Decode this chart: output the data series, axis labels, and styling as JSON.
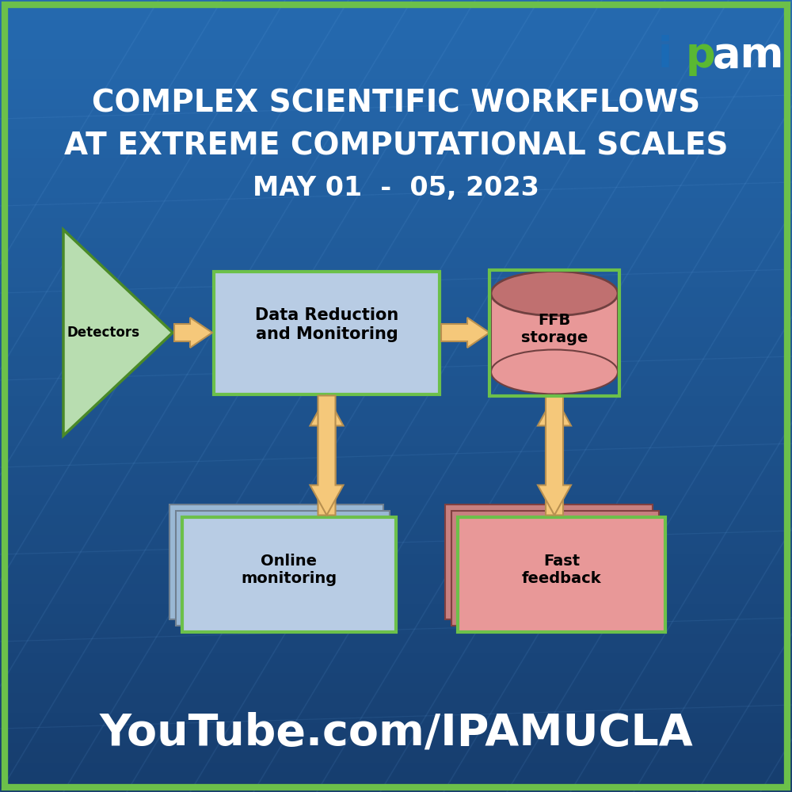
{
  "bg_color_top": "#1e5a9c",
  "bg_color_bottom": "#163d6e",
  "border_color": "#6cc04a",
  "title_line1": "COMPLEX SCIENTIFIC WORKFLOWS",
  "title_line2": "AT EXTREME COMPUTATIONAL SCALES",
  "title_line3": "MAY 01  -  05, 2023",
  "youtube_text": "YouTube.com/IPAMUCLA",
  "title_color": "#ffffff",
  "title_fontsize": 28,
  "date_fontsize": 24,
  "youtube_fontsize": 40,
  "detector_color": "#b8ddb0",
  "detector_border": "#4a8a28",
  "box_blue_color": "#b8cce4",
  "box_blue_border": "#6cc04a",
  "box_red_color": "#e89898",
  "box_red_border": "#6cc04a",
  "box_blue_back": "#9ab8d8",
  "box_red_back": "#d07878",
  "cyl_top_color": "#c07070",
  "arrow_color": "#f5c87a",
  "arrow_border": "#b89050",
  "text_color": "#000000",
  "ipam_blue": "#1a6ab5",
  "ipam_green": "#5ab832",
  "ipam_white": "#ffffff",
  "line_color": [
    0.45,
    0.7,
    0.95,
    0.1
  ]
}
